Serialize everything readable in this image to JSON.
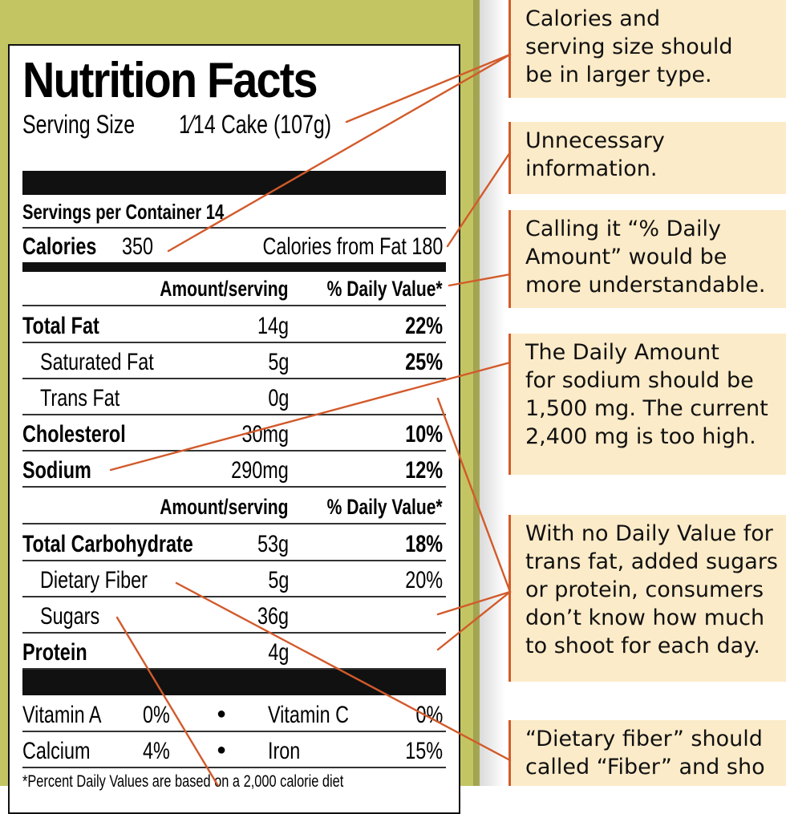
{
  "label": {
    "title": "Nutrition Facts",
    "serving_size_label": "Serving Size",
    "serving_size_value": "1⁄14 Cake (107g)",
    "servings_per_container": "Servings per Container 14",
    "calories_label": "Calories",
    "calories_value": "350",
    "calories_from_fat": "Calories from Fat  180",
    "header_amount": "Amount/serving",
    "header_dv": "% Daily Value*",
    "rows_top": [
      {
        "name": "Total Fat",
        "amount": "14g",
        "dv": "22%"
      },
      {
        "name": "Saturated Fat",
        "amount": "5g",
        "dv": "25%"
      },
      {
        "name": "Trans Fat",
        "amount": "0g",
        "dv": ""
      },
      {
        "name": "Cholesterol",
        "amount": "30mg",
        "dv": "10%"
      },
      {
        "name": "Sodium",
        "amount": "290mg",
        "dv": "12%"
      }
    ],
    "rows_bottom": [
      {
        "name": "Total Carbohydrate",
        "amount": "53g",
        "dv": "18%"
      },
      {
        "name": "Dietary Fiber",
        "amount": "5g",
        "dv": "20%"
      },
      {
        "name": "Sugars",
        "amount": "36g",
        "dv": ""
      },
      {
        "name": "Protein",
        "amount": "4g",
        "dv": ""
      }
    ],
    "vitamins": [
      {
        "left_name": "Vitamin A",
        "left_value": "0%",
        "right_name": "Vitamin C",
        "right_value": "0%"
      },
      {
        "left_name": "Calcium",
        "left_value": "4%",
        "right_name": "Iron",
        "right_value": "15%"
      }
    ],
    "bullet": "●",
    "footnote": "*Percent Daily Values are based on a 2,000 calorie diet"
  },
  "notes": [
    {
      "lines": [
        "Calories and",
        "serving size should",
        "be in larger type."
      ]
    },
    {
      "lines": [
        "Unnecessary",
        "information."
      ]
    },
    {
      "lines": [
        "Calling it “% Daily",
        "Amount” would be",
        "more understandable."
      ]
    },
    {
      "lines": [
        "The Daily Amount",
        "for sodium should be",
        "1,500 mg. The current",
        "2,400 mg is too high."
      ]
    },
    {
      "lines": [
        "With no Daily Value for",
        "trans fat, added sugars",
        "or protein, consumers",
        "don’t know how much",
        "to shoot for each day."
      ]
    },
    {
      "lines": [
        "“Dietary fiber” should",
        "called “Fiber” and sho"
      ]
    }
  ],
  "colors": {
    "background_green": "#c3c563",
    "note_fill": "#fcebc8",
    "connector": "#d25a2b"
  }
}
